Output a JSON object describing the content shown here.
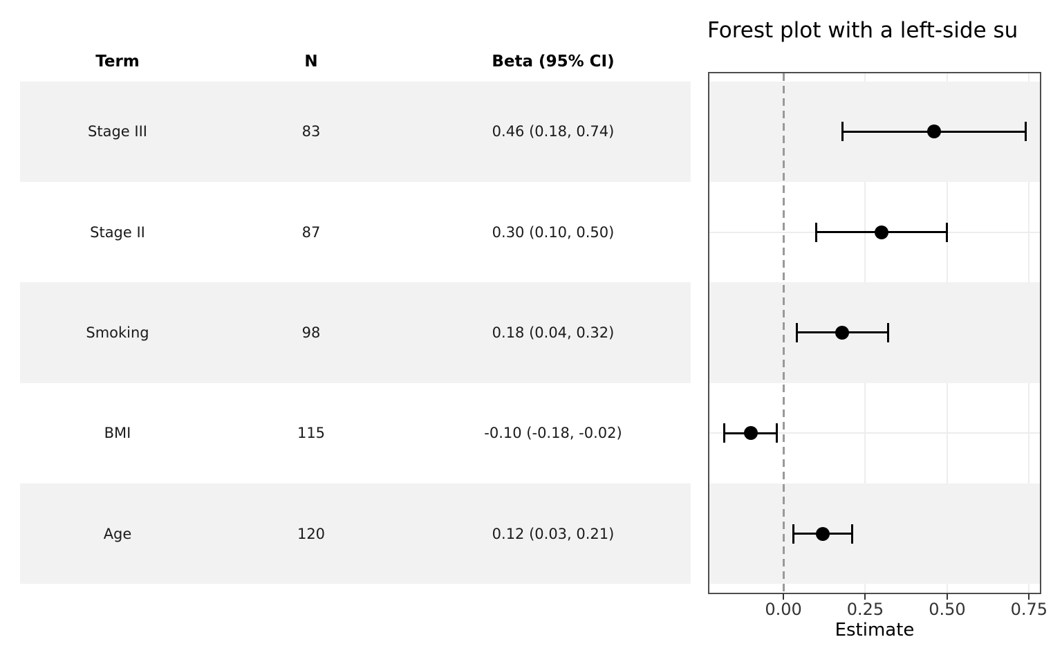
{
  "title": "Forest plot with a left-side su",
  "table": {
    "headers": [
      "Term",
      "N",
      "Beta (95% CI)"
    ],
    "rows": [
      {
        "term": "Stage III",
        "n": "83",
        "beta": "0.46 (0.18, 0.74)"
      },
      {
        "term": "Stage II",
        "n": "87",
        "beta": "0.30 (0.10, 0.50)"
      },
      {
        "term": "Smoking",
        "n": "98",
        "beta": "0.18 (0.04, 0.32)"
      },
      {
        "term": "BMI",
        "n": "115",
        "beta": "-0.10 (-0.18, -0.02)"
      },
      {
        "term": "Age",
        "n": "120",
        "beta": "0.12 (0.03, 0.21)"
      }
    ]
  },
  "chart_data": {
    "type": "scatter",
    "subtype": "forest-plot",
    "title": "Forest plot with a left-side su",
    "xlabel": "Estimate",
    "xlim": [
      -0.226,
      0.783
    ],
    "x_ticks": [
      0.0,
      0.25,
      0.5,
      0.75
    ],
    "x_tick_labels": [
      "0.00",
      "0.25",
      "0.50",
      "0.75"
    ],
    "reference_line_x": 0.0,
    "grid": "on",
    "rows": [
      {
        "term": "Stage III",
        "n": 83,
        "estimate": 0.46,
        "ci_low": 0.18,
        "ci_high": 0.74
      },
      {
        "term": "Stage II",
        "n": 87,
        "estimate": 0.3,
        "ci_low": 0.1,
        "ci_high": 0.5
      },
      {
        "term": "Smoking",
        "n": 98,
        "estimate": 0.18,
        "ci_low": 0.04,
        "ci_high": 0.32
      },
      {
        "term": "BMI",
        "n": 115,
        "estimate": -0.1,
        "ci_low": -0.18,
        "ci_high": -0.02
      },
      {
        "term": "Age",
        "n": 120,
        "estimate": 0.12,
        "ci_low": 0.03,
        "ci_high": 0.21
      }
    ]
  },
  "colors": {
    "stripe": "#f2f2f2",
    "grid": "#ededed",
    "panel_border": "#4d4d4d",
    "reference_dash": "#999999",
    "marker": "#000000",
    "text": "#1a1a1a",
    "tick_text": "#333333"
  }
}
